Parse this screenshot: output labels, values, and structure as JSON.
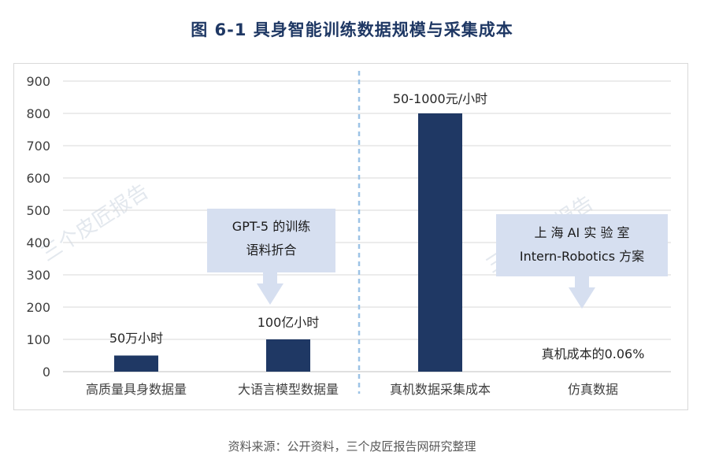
{
  "page": {
    "title": "图  6-1  具身智能训练数据规模与采集成本",
    "source": "资料来源：公开资料，三个皮匠报告网研究整理",
    "watermark": "三个皮匠报告"
  },
  "chart_data": {
    "type": "bar",
    "categories": [
      "高质量具身数据量",
      "大语言模型数据量",
      "真机数据采集成本",
      "仿真数据"
    ],
    "values": [
      50,
      100,
      800,
      null
    ],
    "data_labels": [
      "50万小时",
      "100亿小时",
      "50-1000元/小时",
      "真机成本的0.06%"
    ],
    "ylim": [
      0,
      900
    ],
    "yticks": [
      0,
      100,
      200,
      300,
      400,
      500,
      600,
      700,
      800,
      900
    ],
    "grid": true,
    "bar_color": "#1f3864",
    "divider": "dashed-vertical-between-2-and-3",
    "callouts": [
      {
        "lines": [
          "GPT-5 的训练",
          "语料折合"
        ],
        "points_to": "大语言模型数据量"
      },
      {
        "lines": [
          "上 海  AI  实 验 室",
          "Intern-Robotics 方案"
        ],
        "points_to": "仿真数据"
      }
    ],
    "colors": {
      "bar": "#1f3864",
      "callout": "#d6dff0",
      "grid": "#d9d9d9",
      "divider": "#9dc3e6",
      "axis_text": "#404040"
    }
  }
}
